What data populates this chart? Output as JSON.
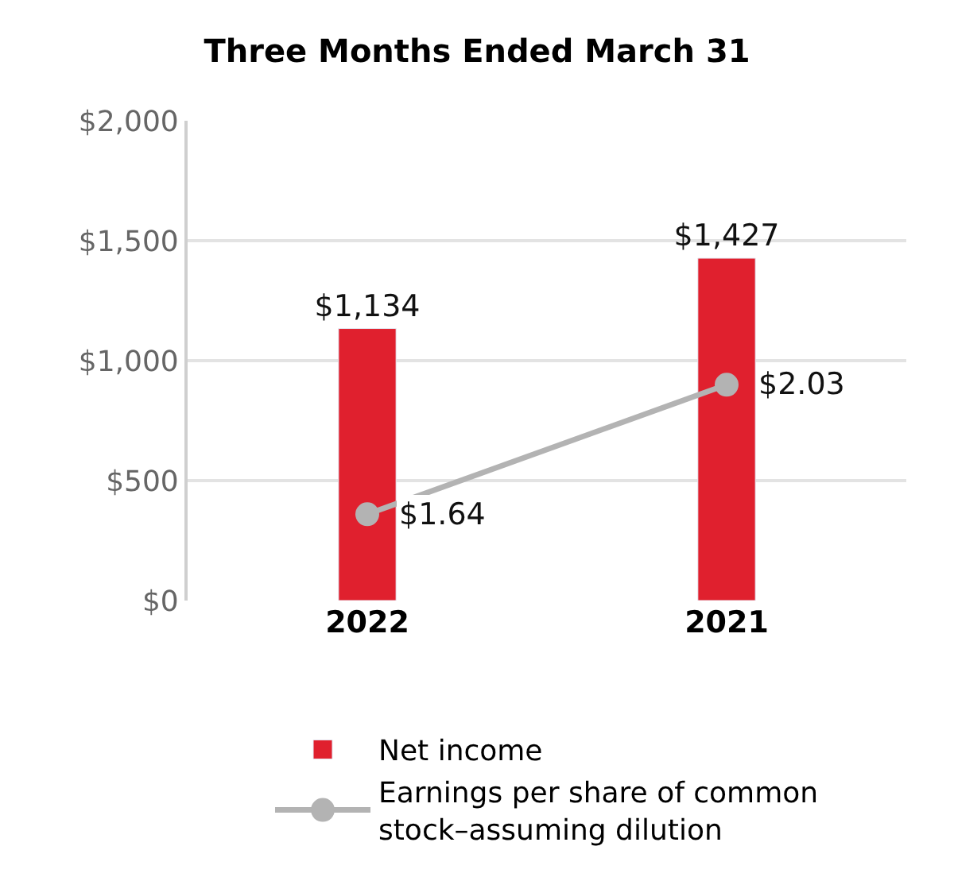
{
  "chart_data": {
    "type": "bar",
    "title": "Three Months Ended March 31",
    "categories": [
      "2022",
      "2021"
    ],
    "series": [
      {
        "name": "Net income",
        "color": "#e0202e",
        "values": [
          1134,
          1427
        ],
        "value_labels": [
          "$1,134",
          "$1,427"
        ]
      },
      {
        "name": "Earnings per share of common stock–assuming dilution",
        "type": "line",
        "axis": "y2",
        "color": "#b3b3b3",
        "values": [
          1.64,
          2.03
        ],
        "value_labels": [
          "$1.64",
          "$2.03"
        ],
        "marker": "circle"
      }
    ],
    "ylim": [
      0,
      2000
    ],
    "yticks": [
      {
        "value": 0,
        "label": "$0"
      },
      {
        "value": 500,
        "label": "$500"
      },
      {
        "value": 1000,
        "label": "$1,000"
      },
      {
        "value": 1500,
        "label": "$1,500"
      },
      {
        "value": 2000,
        "label": "$2,000"
      }
    ],
    "y2lim": [
      1.38,
      2.825
    ],
    "grid": "y",
    "legend": "bottom"
  }
}
